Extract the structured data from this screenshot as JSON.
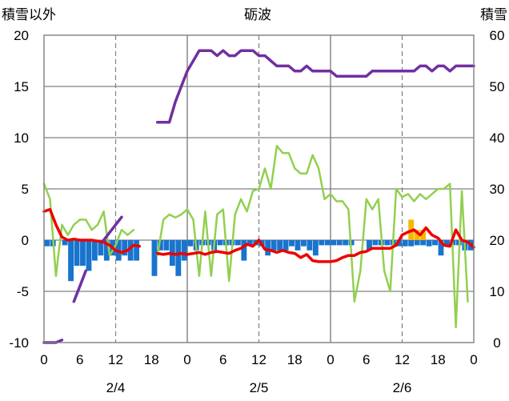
{
  "chart_data": {
    "type": "bar",
    "title": "砺波",
    "left_axis": {
      "label": "積雪以外",
      "range": [
        -10,
        20
      ],
      "ticks": [
        -10,
        -5,
        0,
        5,
        10,
        15,
        20
      ]
    },
    "right_axis": {
      "label": "積雪",
      "range": [
        0,
        60
      ],
      "ticks": [
        0,
        10,
        20,
        30,
        40,
        50,
        60
      ]
    },
    "x": {
      "range_hours": [
        0,
        72
      ],
      "tick_labels": [
        "0",
        "6",
        "12",
        "18",
        "0",
        "6",
        "12",
        "18",
        "0",
        "6",
        "12",
        "18",
        "0"
      ],
      "day_labels": [
        "2/4",
        "2/5",
        "2/6"
      ],
      "solid_gridlines_hours": [
        24,
        48
      ],
      "dashed_gridlines_hours": [
        12,
        36,
        60
      ]
    },
    "grid": true,
    "colors": {
      "precip_bar": "#1874cd",
      "sunshine_bar": "#f5b800",
      "temperature": "#ee0000",
      "wind": "#92d050",
      "snow_depth": "#7030a0",
      "grid": "#808080"
    },
    "series": [
      {
        "axis": "left",
        "kind": "bar",
        "color_key": "precip_bar",
        "points": [
          [
            0.5,
            -0.6
          ],
          [
            1.5,
            -0.6
          ],
          [
            3.5,
            -0.5
          ],
          [
            4.5,
            -4.0
          ],
          [
            5.5,
            -2.5
          ],
          [
            6.5,
            -2.5
          ],
          [
            7.5,
            -3.0
          ],
          [
            8.5,
            -2.0
          ],
          [
            9.5,
            -1.5
          ],
          [
            10.5,
            -2.0
          ],
          [
            11.5,
            -1.5
          ],
          [
            12.5,
            -2.0
          ],
          [
            13.5,
            -1.5
          ],
          [
            14.5,
            -2.0
          ],
          [
            15.5,
            -2.0
          ],
          [
            18.5,
            -3.5
          ],
          [
            19.5,
            -1.0
          ],
          [
            20.5,
            -1.0
          ],
          [
            21.5,
            -2.5
          ],
          [
            22.5,
            -3.5
          ],
          [
            23.5,
            -2.0
          ],
          [
            24.5,
            -0.6
          ],
          [
            25.5,
            -1.0
          ],
          [
            26.5,
            -0.5
          ],
          [
            27.5,
            -0.5
          ],
          [
            28.5,
            -1.0
          ],
          [
            29.5,
            -0.5
          ],
          [
            30.5,
            -0.5
          ],
          [
            31.5,
            -0.5
          ],
          [
            32.5,
            -0.5
          ],
          [
            33.5,
            -2.0
          ],
          [
            34.5,
            -0.5
          ],
          [
            35.5,
            -0.5
          ],
          [
            36.5,
            -0.6
          ],
          [
            37.5,
            -1.5
          ],
          [
            38.5,
            -1.0
          ],
          [
            39.5,
            -1.0
          ],
          [
            40.5,
            -1.0
          ],
          [
            41.5,
            -0.6
          ],
          [
            42.5,
            -1.0
          ],
          [
            43.5,
            -0.6
          ],
          [
            44.5,
            -1.0
          ],
          [
            45.5,
            -1.5
          ],
          [
            46.5,
            -0.5
          ],
          [
            47.5,
            -0.5
          ],
          [
            48.5,
            -0.5
          ],
          [
            49.5,
            -0.5
          ],
          [
            50.5,
            -0.5
          ],
          [
            51.5,
            -0.5
          ],
          [
            54.5,
            -1.0
          ],
          [
            55.5,
            -0.5
          ],
          [
            56.5,
            -0.5
          ],
          [
            57.5,
            -0.5
          ],
          [
            58.5,
            -0.5
          ],
          [
            59.5,
            -0.6
          ],
          [
            60.5,
            -0.6
          ],
          [
            61.5,
            -0.6
          ],
          [
            62.5,
            -0.5
          ],
          [
            63.5,
            -0.5
          ],
          [
            64.5,
            -0.6
          ],
          [
            65.5,
            -0.5
          ],
          [
            66.5,
            -1.5
          ],
          [
            67.5,
            -0.5
          ],
          [
            68.5,
            -0.5
          ],
          [
            69.5,
            -0.5
          ],
          [
            70.5,
            -1.0
          ],
          [
            71.5,
            -1.0
          ]
        ]
      },
      {
        "axis": "left",
        "kind": "bar",
        "color_key": "sunshine_bar",
        "points": [
          [
            61.5,
            2.0
          ],
          [
            62.5,
            1.0
          ],
          [
            63.5,
            1.0
          ]
        ]
      },
      {
        "axis": "left",
        "kind": "line",
        "color_key": "temperature",
        "width": 3.5,
        "segments": [
          [
            [
              0,
              2.8
            ],
            [
              1,
              3.0
            ],
            [
              2,
              1.5
            ],
            [
              3,
              0.3
            ],
            [
              4,
              0.0
            ],
            [
              5,
              0.1
            ],
            [
              6,
              0.0
            ],
            [
              7,
              0.0
            ],
            [
              8,
              0.0
            ],
            [
              9,
              -0.1
            ],
            [
              10,
              -0.2
            ],
            [
              11,
              -0.5
            ],
            [
              12,
              -1.0
            ],
            [
              13,
              -1.2
            ],
            [
              14,
              -1.0
            ],
            [
              15,
              -0.5
            ],
            [
              16,
              -0.6
            ]
          ],
          [
            [
              19,
              -1.3
            ],
            [
              20,
              -1.4
            ],
            [
              21,
              -1.3
            ],
            [
              22,
              -1.4
            ],
            [
              23,
              -1.3
            ],
            [
              24,
              -1.4
            ],
            [
              25,
              -1.3
            ],
            [
              26,
              -1.2
            ],
            [
              27,
              -1.4
            ],
            [
              28,
              -1.2
            ],
            [
              29,
              -1.1
            ],
            [
              30,
              -1.2
            ],
            [
              31,
              -1.3
            ],
            [
              32,
              -1.0
            ],
            [
              33,
              -0.8
            ],
            [
              34,
              -0.4
            ],
            [
              35,
              -0.6
            ],
            [
              36,
              0.0
            ],
            [
              37,
              -0.9
            ],
            [
              38,
              -1.0
            ],
            [
              39,
              -1.2
            ],
            [
              40,
              -1.0
            ],
            [
              41,
              -1.2
            ],
            [
              42,
              -1.3
            ],
            [
              43,
              -1.7
            ],
            [
              44,
              -1.4
            ],
            [
              45,
              -2.0
            ],
            [
              46,
              -2.1
            ],
            [
              47,
              -2.1
            ],
            [
              48,
              -2.1
            ],
            [
              49,
              -2.0
            ],
            [
              50,
              -1.7
            ],
            [
              51,
              -1.5
            ],
            [
              52,
              -1.5
            ],
            [
              53,
              -1.2
            ],
            [
              54,
              -1.1
            ],
            [
              55,
              -0.8
            ],
            [
              56,
              -0.8
            ],
            [
              57,
              -0.8
            ],
            [
              58,
              -0.8
            ],
            [
              59,
              -0.5
            ],
            [
              60,
              0.5
            ],
            [
              61,
              0.8
            ],
            [
              62,
              1.0
            ],
            [
              63,
              0.5
            ],
            [
              64,
              1.2
            ],
            [
              65,
              0.5
            ],
            [
              66,
              0.2
            ],
            [
              67,
              -0.5
            ],
            [
              68,
              -0.6
            ],
            [
              69,
              1.0
            ],
            [
              70,
              0.0
            ],
            [
              71,
              -0.2
            ],
            [
              72,
              -0.7
            ]
          ]
        ]
      },
      {
        "axis": "left",
        "kind": "line",
        "color_key": "wind",
        "width": 2.5,
        "segments": [
          [
            [
              0,
              5.5
            ],
            [
              1,
              4.0
            ],
            [
              2,
              -3.5
            ],
            [
              3,
              1.5
            ],
            [
              4,
              0.5
            ],
            [
              5,
              1.5
            ],
            [
              6,
              2.0
            ],
            [
              7,
              2.0
            ],
            [
              8,
              1.0
            ],
            [
              9,
              1.5
            ],
            [
              10,
              2.8
            ],
            [
              11,
              -1.5
            ],
            [
              12,
              -0.5
            ],
            [
              13,
              1.0
            ],
            [
              14,
              0.5
            ],
            [
              15,
              1.0
            ]
          ],
          [
            [
              19,
              -1.5
            ],
            [
              20,
              2.0
            ],
            [
              21,
              2.5
            ],
            [
              22,
              2.2
            ],
            [
              23,
              2.5
            ],
            [
              24,
              3.0
            ],
            [
              25,
              2.0
            ],
            [
              26,
              -3.5
            ],
            [
              27,
              2.8
            ],
            [
              28,
              -3.5
            ],
            [
              29,
              2.5
            ],
            [
              30,
              3.0
            ],
            [
              31,
              -4.0
            ],
            [
              32,
              2.5
            ],
            [
              33,
              4.0
            ],
            [
              34,
              2.8
            ],
            [
              35,
              4.8
            ],
            [
              36,
              5.0
            ],
            [
              37,
              7.0
            ],
            [
              38,
              5.0
            ],
            [
              39,
              9.2
            ],
            [
              40,
              8.5
            ],
            [
              41,
              8.5
            ],
            [
              42,
              7.0
            ],
            [
              43,
              6.5
            ],
            [
              44,
              6.5
            ],
            [
              45,
              8.3
            ],
            [
              46,
              7.0
            ],
            [
              47,
              4.0
            ],
            [
              48,
              4.5
            ],
            [
              49,
              3.8
            ],
            [
              50,
              3.8
            ],
            [
              51,
              3.0
            ],
            [
              52,
              -6.0
            ],
            [
              53,
              -3.0
            ],
            [
              54,
              4.0
            ],
            [
              55,
              3.0
            ],
            [
              56,
              4.0
            ],
            [
              57,
              -3.0
            ],
            [
              58,
              -5.0
            ],
            [
              59,
              5.0
            ],
            [
              60,
              4.2
            ],
            [
              61,
              4.5
            ],
            [
              62,
              3.8
            ],
            [
              63,
              4.5
            ],
            [
              64,
              4.0
            ],
            [
              65,
              4.5
            ],
            [
              66,
              5.0
            ],
            [
              67,
              5.0
            ],
            [
              68,
              5.5
            ],
            [
              69,
              -8.5
            ],
            [
              70,
              4.8
            ],
            [
              71,
              -6.0
            ]
          ]
        ]
      },
      {
        "axis": "right",
        "kind": "line",
        "color_key": "snow_depth",
        "width": 3.5,
        "segments": [
          [
            [
              0,
              0
            ],
            [
              1,
              0
            ],
            [
              2,
              0
            ],
            [
              3,
              0.5
            ]
          ],
          [
            [
              5,
              8
            ],
            [
              6,
              11
            ],
            [
              7,
              14
            ]
          ],
          [
            [
              10,
              20
            ],
            [
              11,
              21.5
            ],
            [
              12,
              23
            ],
            [
              13,
              24.5
            ]
          ],
          [
            [
              19,
              43
            ],
            [
              20,
              43
            ],
            [
              21,
              43
            ],
            [
              22,
              47
            ],
            [
              23,
              50
            ],
            [
              24,
              53
            ],
            [
              25,
              55
            ],
            [
              26,
              57
            ],
            [
              27,
              57
            ],
            [
              28,
              57
            ],
            [
              29,
              56
            ],
            [
              30,
              57
            ],
            [
              31,
              56
            ],
            [
              32,
              56
            ],
            [
              33,
              57
            ],
            [
              34,
              57
            ],
            [
              35,
              57
            ],
            [
              36,
              56
            ],
            [
              37,
              56
            ],
            [
              38,
              55
            ],
            [
              39,
              54
            ],
            [
              40,
              54
            ],
            [
              41,
              54
            ],
            [
              42,
              53
            ],
            [
              43,
              53
            ],
            [
              44,
              54
            ],
            [
              45,
              53
            ],
            [
              46,
              53
            ],
            [
              47,
              53
            ],
            [
              48,
              53
            ],
            [
              49,
              52
            ],
            [
              50,
              52
            ],
            [
              51,
              52
            ],
            [
              52,
              52
            ],
            [
              53,
              52
            ],
            [
              54,
              52
            ],
            [
              55,
              53
            ],
            [
              56,
              53
            ],
            [
              57,
              53
            ],
            [
              58,
              53
            ],
            [
              59,
              53
            ],
            [
              60,
              53
            ],
            [
              61,
              53
            ],
            [
              62,
              53
            ],
            [
              63,
              54
            ],
            [
              64,
              54
            ],
            [
              65,
              53
            ],
            [
              66,
              54
            ],
            [
              67,
              54
            ],
            [
              68,
              53
            ],
            [
              69,
              54
            ],
            [
              70,
              54
            ],
            [
              71,
              54
            ],
            [
              72,
              54
            ]
          ]
        ]
      }
    ]
  }
}
